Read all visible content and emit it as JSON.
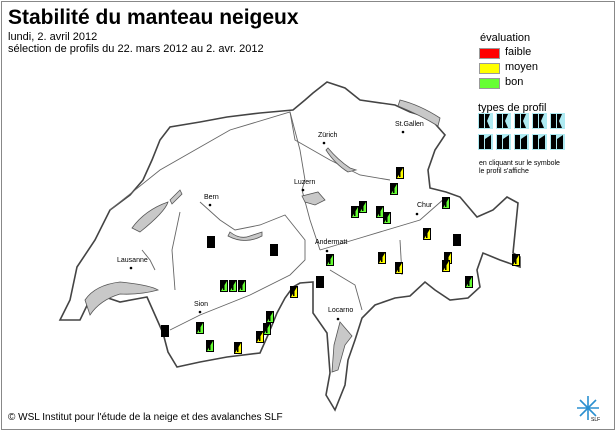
{
  "header": {
    "title": "Stabilité du manteau neigeux",
    "date": "lundi, 2. avril 2012",
    "selection": "sélection de profils du 22. mars 2012 au 2. avr. 2012"
  },
  "legend": {
    "title": "évaluation",
    "items": [
      {
        "label": "faible",
        "color": "#ff0000"
      },
      {
        "label": "moyen",
        "color": "#ffff00"
      },
      {
        "label": "bon",
        "color": "#66ff33"
      }
    ],
    "profile_types_title": "types de profil",
    "hint_line1": "en cliquant sur le symbole",
    "hint_line2": "le profil s'affiche",
    "profile_type_count": 10,
    "profile_type_color": "#aeeaf2"
  },
  "cities": [
    {
      "name": "Zürich"
    },
    {
      "name": "St.Gallen"
    },
    {
      "name": "Bern"
    },
    {
      "name": "Luzern"
    },
    {
      "name": "Chur"
    },
    {
      "name": "Andermatt"
    },
    {
      "name": "Lausanne"
    },
    {
      "name": "Sion"
    },
    {
      "name": "Locarno"
    }
  ],
  "profiles": [
    "moyen",
    "bon",
    "bon",
    "bon",
    "bon",
    "bon",
    "bon",
    "moyen",
    "none",
    "moyen",
    "moyen",
    "moyen",
    "moyen",
    "bon",
    "moyen",
    "none",
    "none",
    "bon",
    "bon",
    "bon",
    "bon",
    "moyen",
    "none",
    "bon",
    "bon",
    "moyen",
    "bon",
    "bon",
    "moyen",
    "none"
  ],
  "colors": {
    "faible": "#ff0000",
    "moyen": "#ffff00",
    "bon": "#66ff33",
    "none": "#000000",
    "lake": "#c8c8c8",
    "border": "#444444",
    "logo": "#2a8fd0"
  },
  "footer": {
    "copyright": "© WSL Institut pour l'étude de la neige et des avalanches SLF",
    "logo_text": "SLF"
  }
}
